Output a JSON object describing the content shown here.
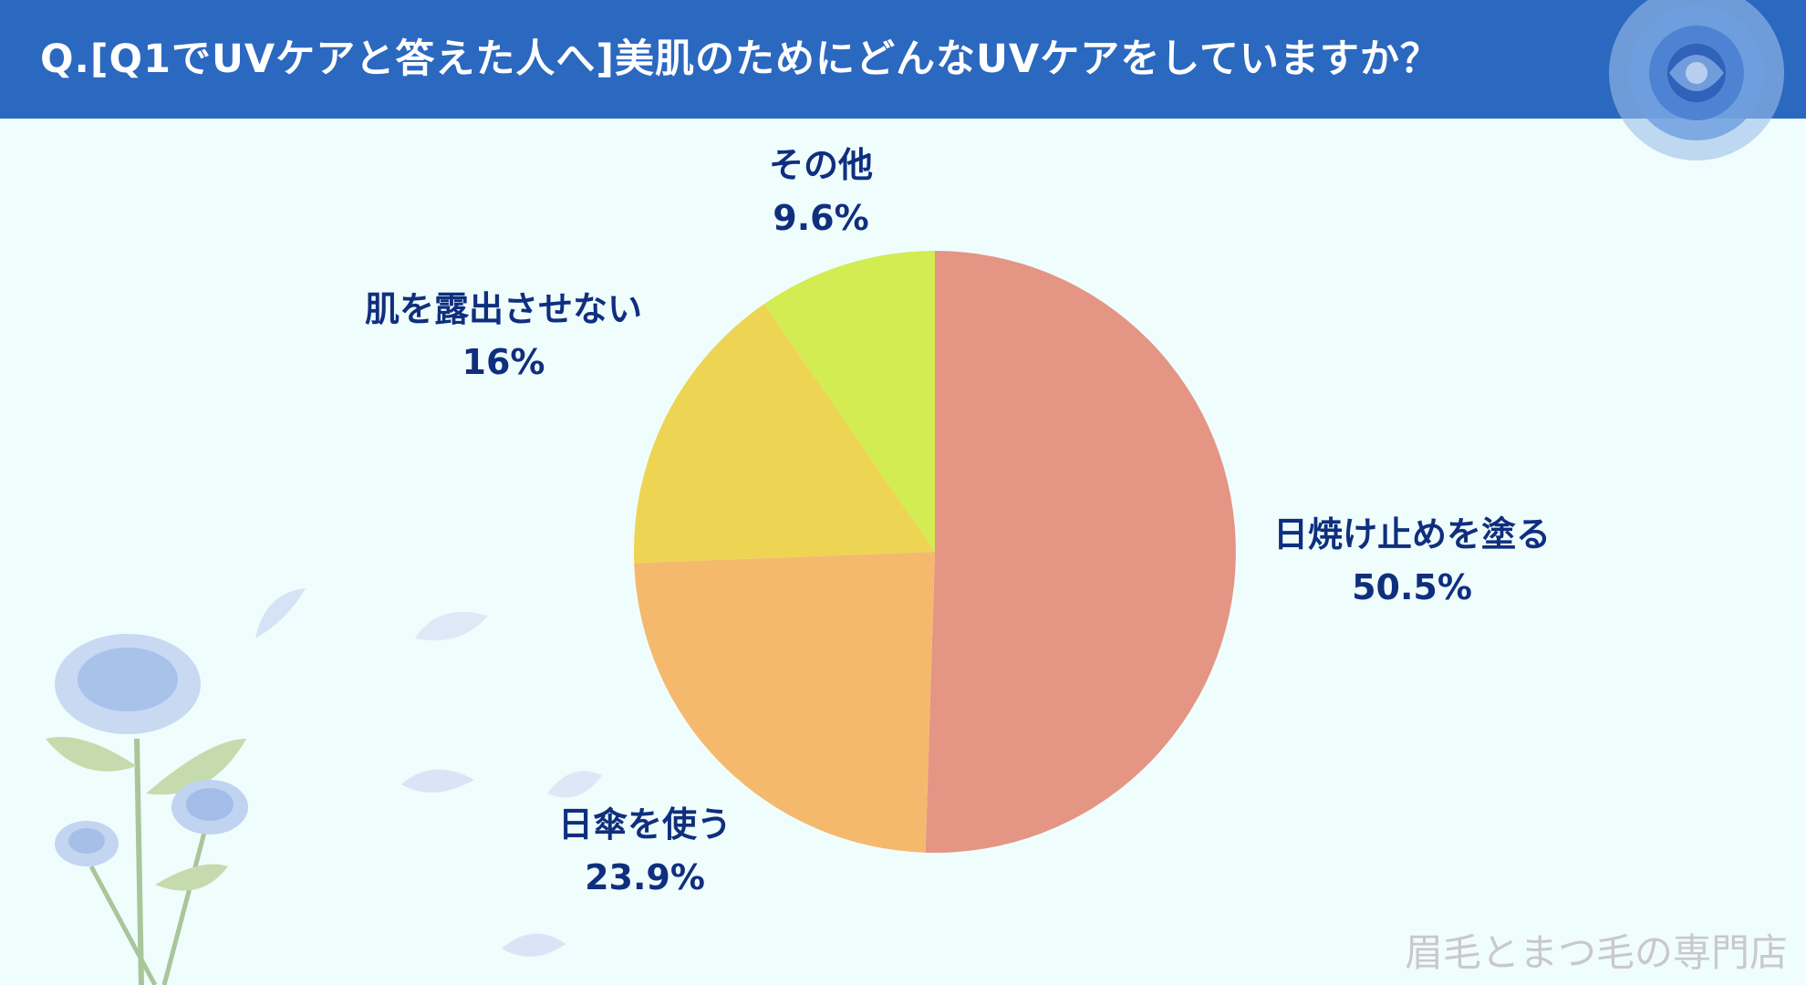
{
  "header": {
    "title": "Q.[Q1でUVケアと答えた人へ]美肌のためにどんなUVケアをしていますか？"
  },
  "chart_data": {
    "type": "pie",
    "title": "",
    "start_angle_deg": 0,
    "direction": "clockwise",
    "slices": [
      {
        "label": "日焼け止めを塗る",
        "value": 50.5,
        "value_text": "50.5%",
        "color": "#e49584"
      },
      {
        "label": "日傘を使う",
        "value": 23.9,
        "value_text": "23.9%",
        "color": "#f5b96e"
      },
      {
        "label": "肌を露出させない",
        "value": 16,
        "value_text": "16%",
        "color": "#eed453"
      },
      {
        "label": "その他",
        "value": 9.6,
        "value_text": "9.6%",
        "color": "#d2ec52"
      }
    ]
  },
  "decoration": {
    "top_right_icon": "blue-rose-icon",
    "bottom_left_icon": "blue-rose-bouquet-icon",
    "petal_icon": "petal-icon",
    "accent": "#2b68bf",
    "label_color": "#0f2f7e"
  },
  "footer": {
    "watermark": "眉毛とまつ毛の専門店"
  }
}
